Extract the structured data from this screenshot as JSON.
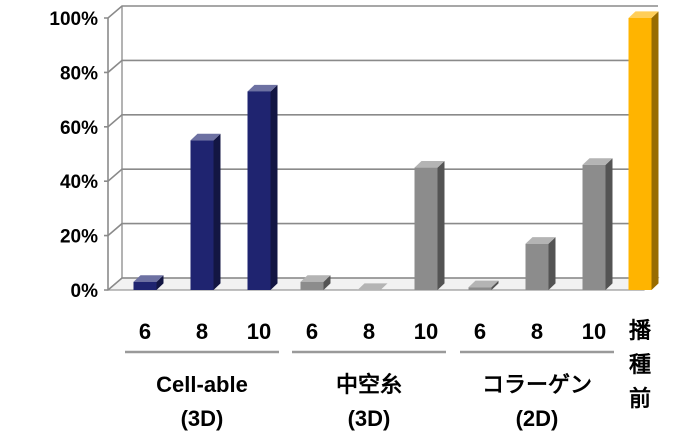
{
  "chart_data": {
    "type": "bar",
    "ylim": [
      0,
      100
    ],
    "y_ticks": [
      "0%",
      "20%",
      "40%",
      "60%",
      "80%",
      "100%"
    ],
    "grid": true,
    "colors": {
      "navy": "#1f2470",
      "gray": "#8c8c8c",
      "gold": "#ffb400"
    },
    "groups": [
      {
        "label_lines": [
          "Cell-able",
          "(3D)"
        ],
        "color": "navy",
        "bars": [
          {
            "x": "6",
            "value": 3
          },
          {
            "x": "8",
            "value": 55
          },
          {
            "x": "10",
            "value": 73
          }
        ]
      },
      {
        "label_lines": [
          "中空糸",
          "(3D)"
        ],
        "color": "gray",
        "bars": [
          {
            "x": "6",
            "value": 3
          },
          {
            "x": "8",
            "value": 0
          },
          {
            "x": "10",
            "value": 45
          }
        ]
      },
      {
        "label_lines": [
          "コラーゲン",
          "(2D)"
        ],
        "color": "gray",
        "bars": [
          {
            "x": "6",
            "value": 1
          },
          {
            "x": "8",
            "value": 17
          },
          {
            "x": "10",
            "value": 46
          }
        ]
      },
      {
        "label_lines": [
          "播",
          "種",
          "前"
        ],
        "color": "gold",
        "bars": [
          {
            "x": "",
            "value": 100
          }
        ]
      }
    ]
  }
}
